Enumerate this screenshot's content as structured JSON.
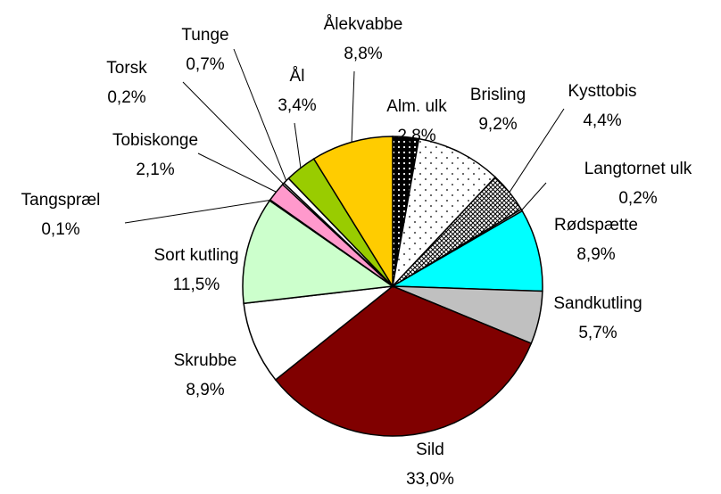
{
  "chart_data": {
    "type": "pie",
    "categories": [
      "Alm. ulk",
      "Brisling",
      "Kysttobis",
      "Langtornet ulk",
      "Rødspætte",
      "Sandkutling",
      "Sild",
      "Skrubbe",
      "Sort kutling",
      "Tangspræl",
      "Tobiskonge",
      "Torsk",
      "Tunge",
      "Ål",
      "Ålekvabbe"
    ],
    "values": [
      2.8,
      9.2,
      4.4,
      0.2,
      8.9,
      5.7,
      33.0,
      8.9,
      11.5,
      0.1,
      2.1,
      0.2,
      0.7,
      3.4,
      8.8
    ],
    "value_labels": [
      "2,8%",
      "9,2%",
      "4,4%",
      "0,2%",
      "8,9%",
      "5,7%",
      "33,0%",
      "8,9%",
      "11,5%",
      "0,1%",
      "2,1%",
      "0,2%",
      "0,7%",
      "3,4%",
      "8,8%"
    ],
    "colors": [
      "#000000",
      "#ffffff",
      "#808080",
      "#ffffff",
      "#00ffff",
      "#c0c0c0",
      "#800000",
      "#ffffff",
      "#ccffcc",
      "#ffffff",
      "#ff99cc",
      "#ffffff",
      "#ffffff",
      "#99cc00",
      "#ffcc00"
    ]
  }
}
